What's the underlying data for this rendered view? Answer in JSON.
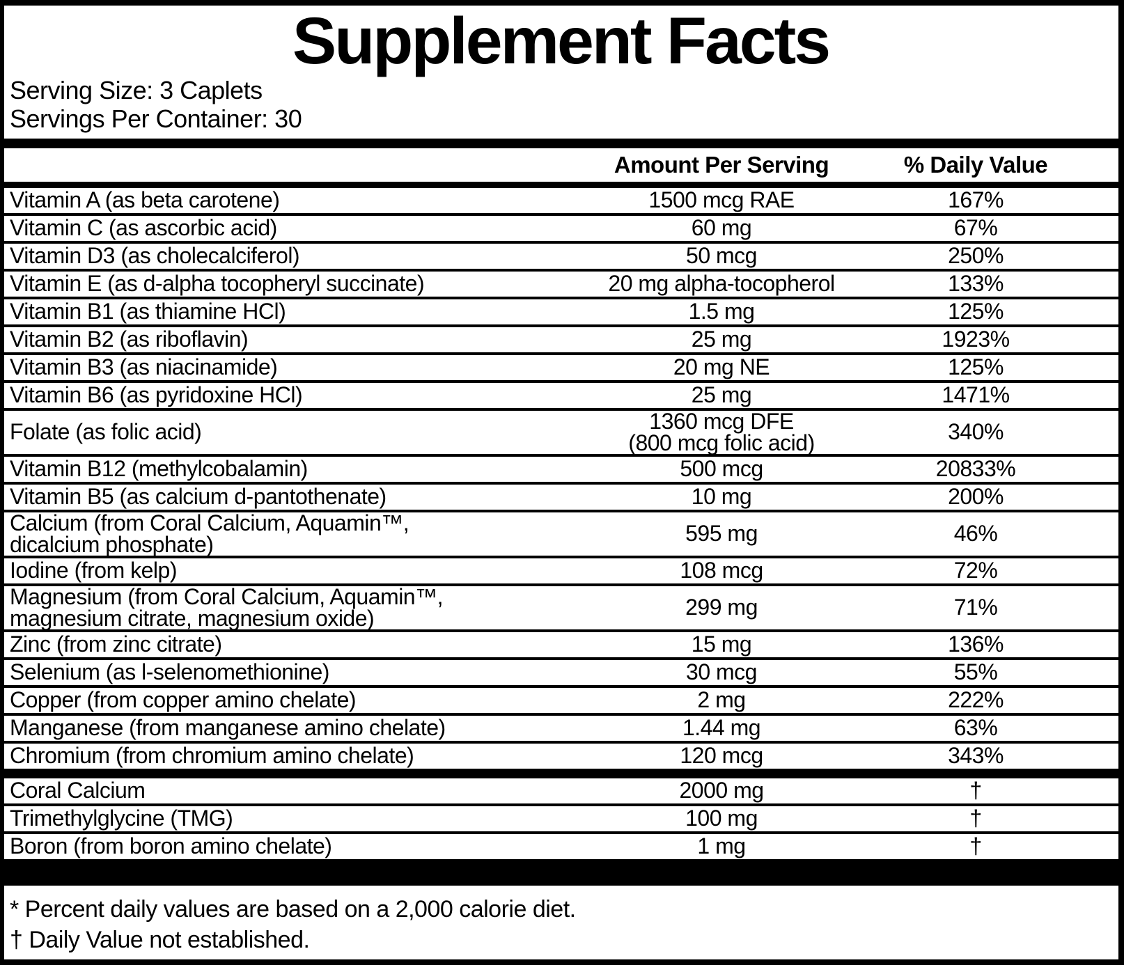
{
  "label": {
    "title": "Supplement Facts",
    "serving_size": "Serving Size: 3 Caplets",
    "servings_per_container": "Servings Per Container: 30",
    "columns": {
      "amount": "Amount Per Serving",
      "daily_value": "% Daily Value"
    },
    "colors": {
      "foreground": "#000000",
      "background": "#ffffff"
    }
  },
  "main_rows": [
    {
      "name": "Vitamin A (as beta carotene)",
      "amount": "1500 mcg RAE",
      "dv": "167%"
    },
    {
      "name": "Vitamin C (as ascorbic acid)",
      "amount": "60 mg",
      "dv": "67%"
    },
    {
      "name": "Vitamin D3 (as cholecalciferol)",
      "amount": "50 mcg",
      "dv": "250%"
    },
    {
      "name": "Vitamin E (as d-alpha tocopheryl succinate)",
      "amount": "20 mg alpha-tocopherol",
      "dv": "133%"
    },
    {
      "name": "Vitamin B1 (as thiamine HCl)",
      "amount": "1.5 mg",
      "dv": "125%"
    },
    {
      "name": "Vitamin B2 (as riboflavin)",
      "amount": "25 mg",
      "dv": "1923%"
    },
    {
      "name": "Vitamin B3 (as niacinamide)",
      "amount": "20 mg NE",
      "dv": "125%"
    },
    {
      "name": "Vitamin B6 (as pyridoxine HCl)",
      "amount": "25 mg",
      "dv": "1471%"
    },
    {
      "name": "Folate (as folic acid)",
      "amount": "1360 mcg DFE",
      "amount2": "(800 mcg folic acid)",
      "dv": "340%"
    },
    {
      "name": "Vitamin B12 (methylcobalamin)",
      "amount": "500 mcg",
      "dv": "20833%"
    },
    {
      "name": "Vitamin B5 (as calcium d-pantothenate)",
      "amount": "10 mg",
      "dv": "200%"
    },
    {
      "name": "Calcium (from Coral Calcium, Aquamin™,",
      "name2": "dicalcium phosphate)",
      "amount": "595 mg",
      "dv": "46%"
    },
    {
      "name": "Iodine (from kelp)",
      "amount": "108 mcg",
      "dv": "72%"
    },
    {
      "name": "Magnesium (from Coral Calcium, Aquamin™,",
      "name2": "magnesium citrate, magnesium oxide)",
      "amount": "299 mg",
      "dv": "71%"
    },
    {
      "name": "Zinc (from zinc citrate)",
      "amount": "15 mg",
      "dv": "136%"
    },
    {
      "name": "Selenium (as l-selenomethionine)",
      "amount": "30 mcg",
      "dv": "55%"
    },
    {
      "name": "Copper (from copper amino chelate)",
      "amount": "2 mg",
      "dv": "222%"
    },
    {
      "name": "Manganese (from manganese amino chelate)",
      "amount": "1.44 mg",
      "dv": "63%"
    },
    {
      "name": "Chromium (from chromium amino chelate)",
      "amount": "120 mcg",
      "dv": "343%"
    }
  ],
  "secondary_rows": [
    {
      "name": "Coral Calcium",
      "amount": "2000 mg",
      "dv": "†"
    },
    {
      "name": "Trimethylglycine (TMG)",
      "amount": "100 mg",
      "dv": "†"
    },
    {
      "name": "Boron (from boron amino chelate)",
      "amount": "1 mg",
      "dv": "†"
    }
  ],
  "footnotes": [
    "* Percent daily values are based on a 2,000 calorie diet.",
    "† Daily Value not established."
  ]
}
